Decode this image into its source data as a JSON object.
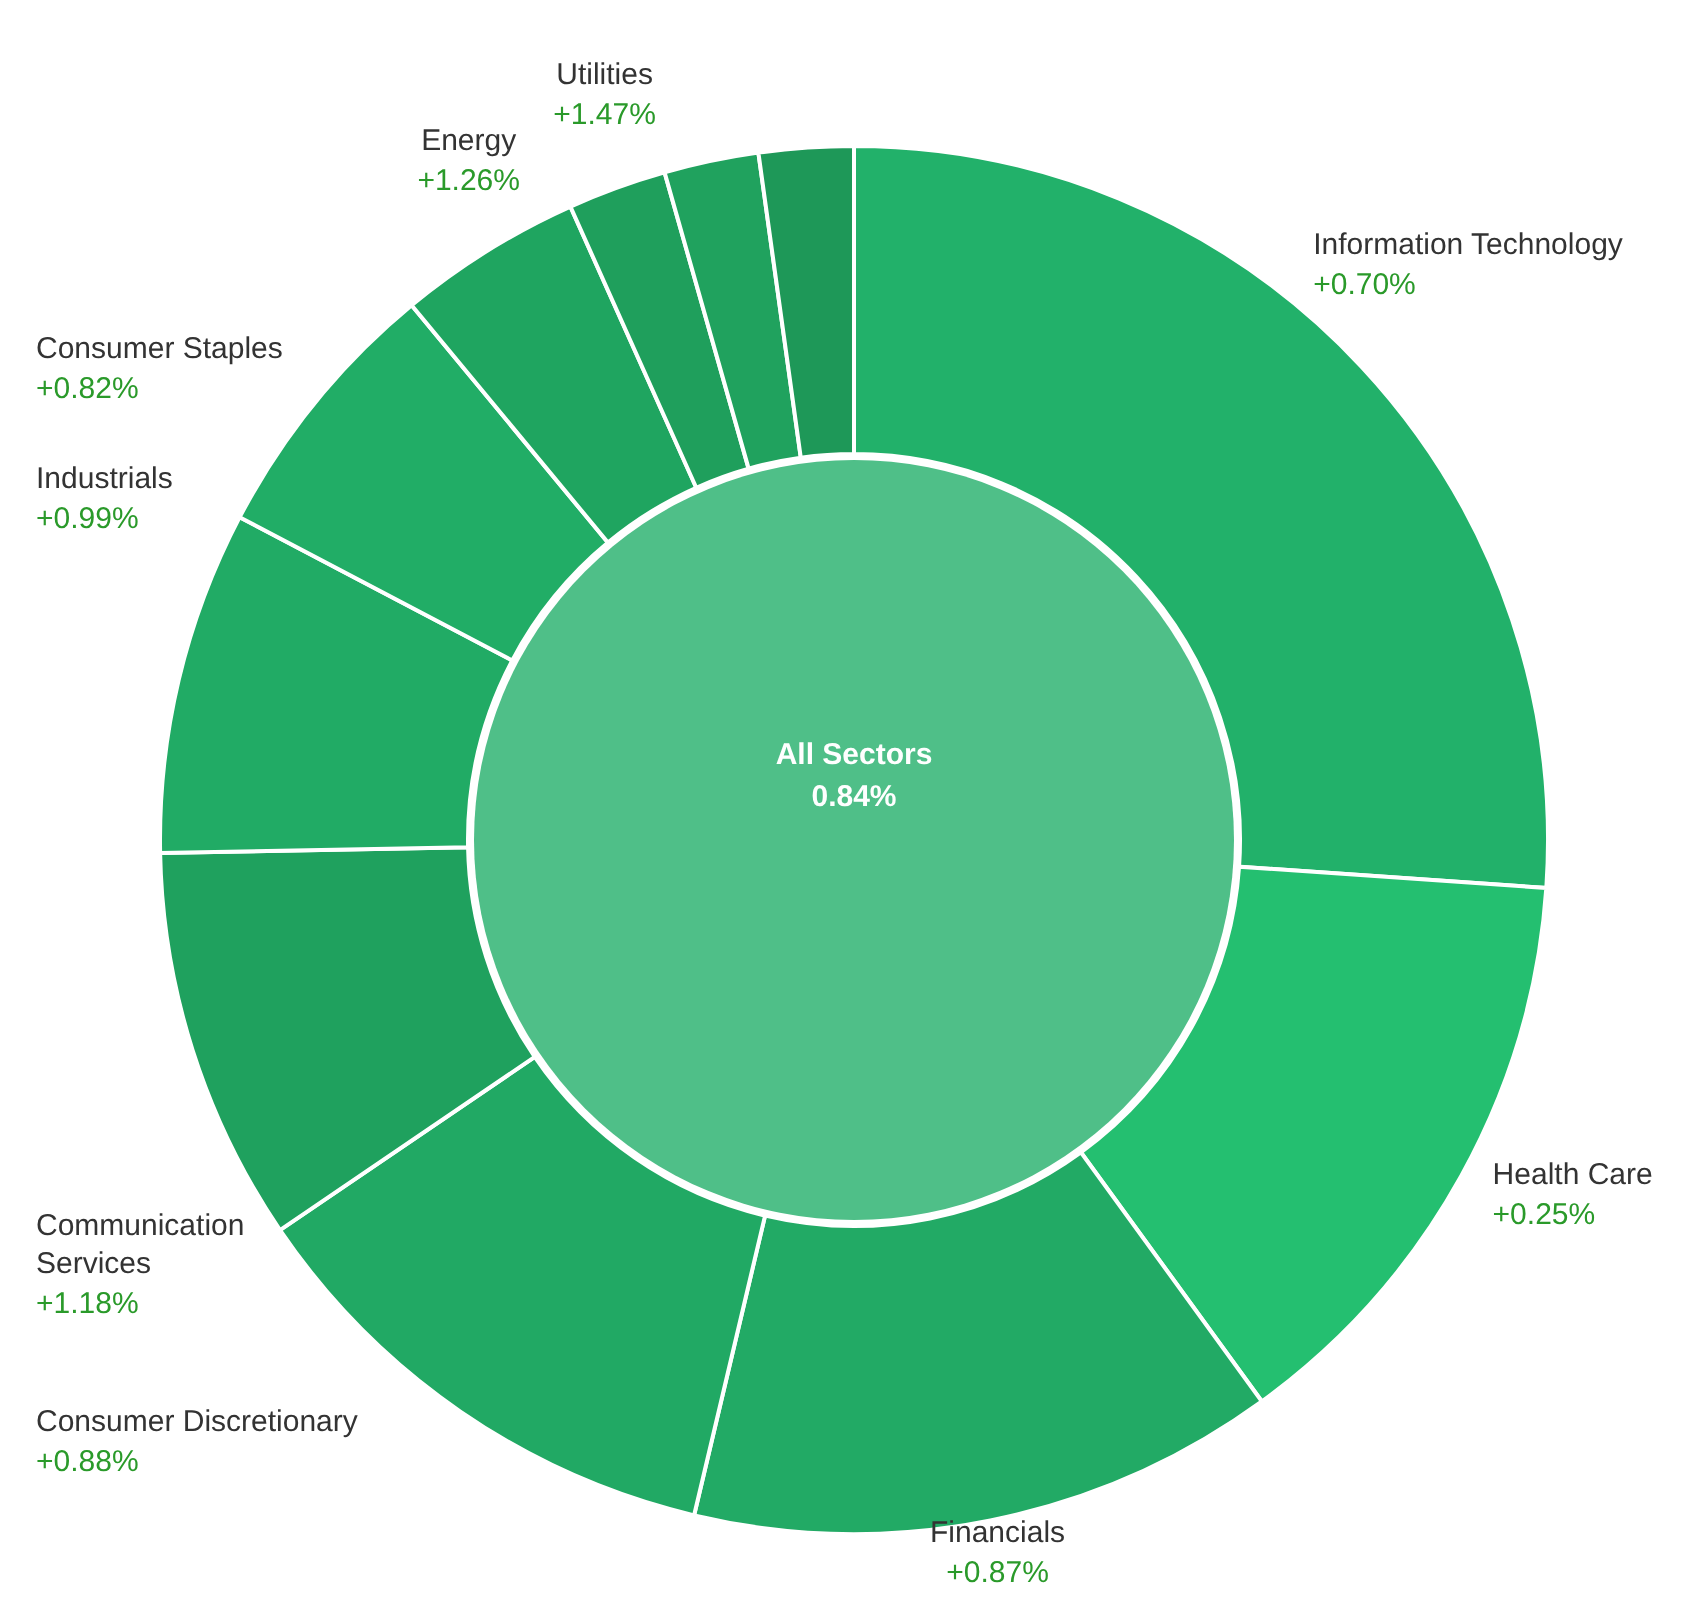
{
  "chart_data": {
    "type": "donut",
    "categories": [
      "Information Technology",
      "Health Care",
      "Financials",
      "Consumer Discretionary",
      "Communication Services",
      "Industrials",
      "Consumer Staples",
      "Energy",
      "Utilities",
      null,
      null
    ],
    "values": [
      26.1,
      13.9,
      13.7,
      11.8,
      9.2,
      8.0,
      6.3,
      4.3,
      2.3,
      2.2,
      2.2
    ],
    "colors": [
      "#22b16a",
      "#24bf70",
      "#22aa65",
      "#21a964",
      "#1fa15e",
      "#21ab65",
      "#21ad66",
      "#1fa560",
      "#1f9f5c",
      "#20a25e",
      "#1e9858"
    ],
    "annotations": [
      "All Sectors",
      "0.84%",
      {
        "text": "+0.70%",
        "x": "Information Technology"
      },
      {
        "text": "+0.25%",
        "x": "Health Care"
      },
      {
        "text": "+0.87%",
        "x": "Financials"
      },
      {
        "text": "+0.88%",
        "x": "Consumer Discretionary"
      },
      {
        "text": "+1.18%",
        "x": "Communication Services"
      },
      {
        "text": "+0.99%",
        "x": "Industrials"
      },
      {
        "text": "+0.82%",
        "x": "Consumer Staples"
      },
      {
        "text": "+1.26%",
        "x": "Energy"
      },
      {
        "text": "+1.47%",
        "x": "Utilities"
      }
    ]
  }
}
